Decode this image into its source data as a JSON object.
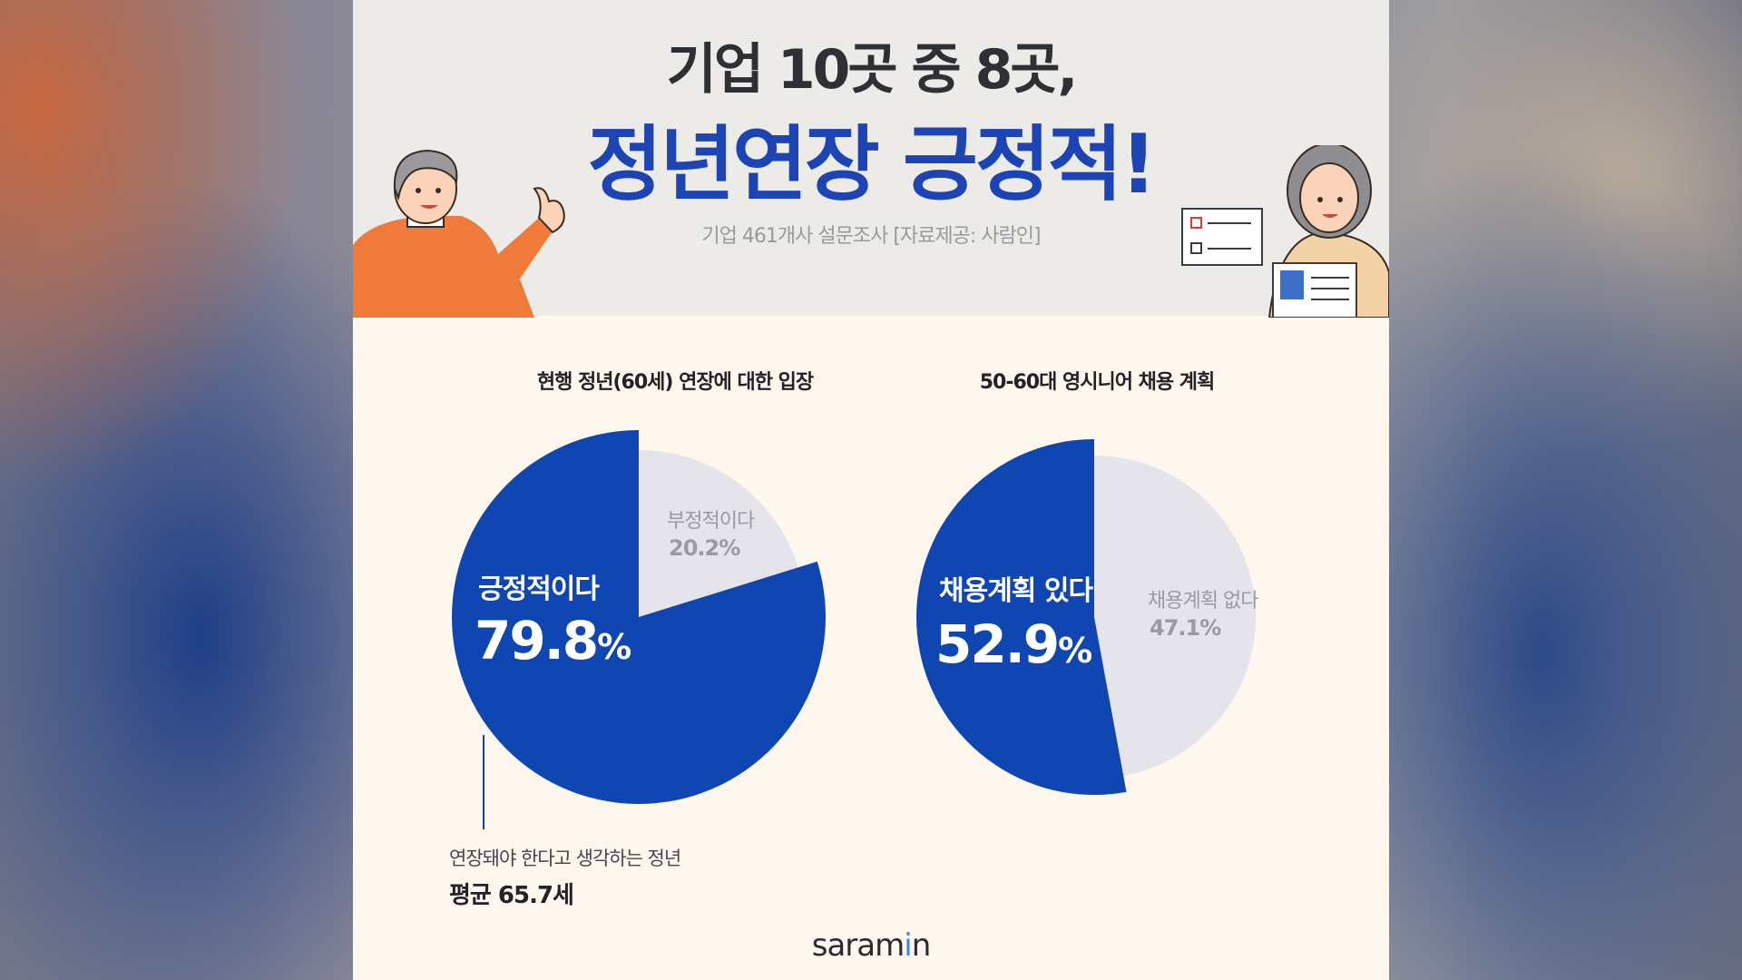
{
  "header": {
    "headline_1": "기업 10곳 중 8곳,",
    "headline_2": "정년연장 긍정적!",
    "survey_note": "기업 461개사 설문조사  [자료제공: 사람인]"
  },
  "colors": {
    "primary": "#0f46b2",
    "secondary": "#e5e4ea",
    "headline_accent": "#1d44b4",
    "header_bg": "#ecebe7",
    "card_bg": "#fdf7ee"
  },
  "illustrations": [
    "man-pointing-illustration",
    "woman-with-resume-illustration",
    "checklist-icon",
    "resume-card-icon"
  ],
  "chart_data": [
    {
      "type": "pie",
      "title": "현행 정년(60세) 연장에 대한 입장",
      "slices": [
        {
          "label": "긍정적이다",
          "value": 79.8,
          "display": "79.8",
          "color": "#0f46b2"
        },
        {
          "label": "부정적이다",
          "value": 20.2,
          "display": "20.2%",
          "color": "#e5e4ea"
        }
      ],
      "annotation": {
        "text": "연장돼야 한다고 생각하는 정년",
        "value": "평균 65.7세"
      }
    },
    {
      "type": "pie",
      "title": "50-60대 영시니어 채용 계획",
      "slices": [
        {
          "label": "채용계획 있다",
          "value": 52.9,
          "display": "52.9",
          "color": "#0f46b2"
        },
        {
          "label": "채용계획 없다",
          "value": 47.1,
          "display": "47.1%",
          "color": "#e5e4ea"
        }
      ]
    }
  ],
  "pct_sign": "%",
  "logo": {
    "text_before": "saram",
    "text_after": "n"
  }
}
